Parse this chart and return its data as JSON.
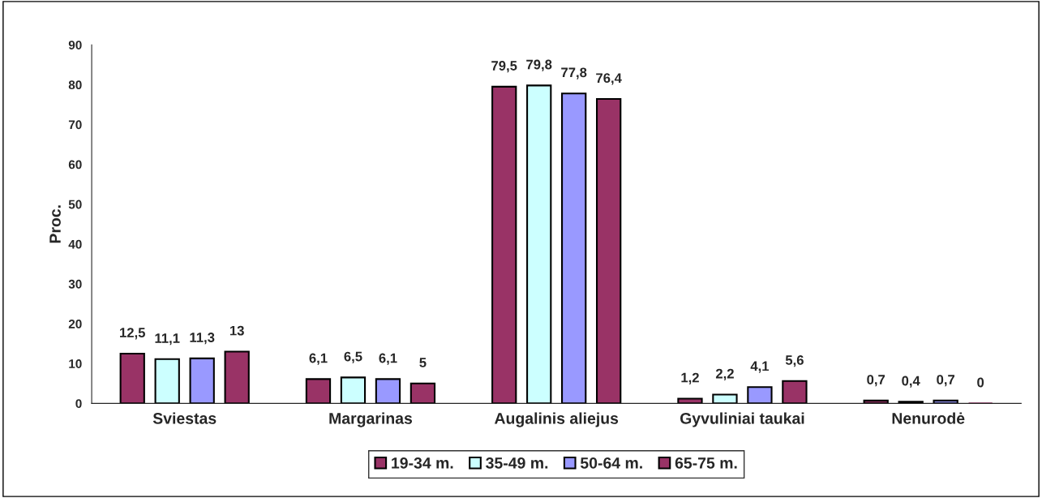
{
  "chart_data": {
    "type": "bar",
    "ylabel": "Proc.",
    "categories": [
      "Sviestas",
      "Margarinas",
      "Augalinis aliejus",
      "Gyvuliniai taukai",
      "Nenurodė"
    ],
    "series": [
      {
        "name": "19-34 m.",
        "color": "#993366",
        "values": [
          12.5,
          6.1,
          79.5,
          1.2,
          0.7
        ],
        "value_labels": [
          "12,5",
          "6,1",
          "79,5",
          "1,2",
          "0,7"
        ]
      },
      {
        "name": "35-49 m.",
        "color": "#ccffff",
        "values": [
          11.1,
          6.5,
          79.8,
          2.2,
          0.4
        ],
        "value_labels": [
          "11,1",
          "6,5",
          "79,8",
          "2,2",
          "0,4"
        ]
      },
      {
        "name": "50-64 m.",
        "color": "#9999ff",
        "values": [
          11.3,
          6.1,
          77.8,
          4.1,
          0.7
        ],
        "value_labels": [
          "11,3",
          "6,1",
          "77,8",
          "4,1",
          "0,7"
        ]
      },
      {
        "name": "65-75 m.",
        "color": "#993366",
        "values": [
          13,
          5,
          76.4,
          5.6,
          0
        ],
        "value_labels": [
          "13",
          "5",
          "76,4",
          "5,6",
          "0"
        ]
      }
    ],
    "ylim": [
      0,
      90
    ],
    "yticks": [
      0,
      10,
      20,
      30,
      40,
      50,
      60,
      70,
      80,
      90
    ],
    "grid": false,
    "legend": "bottom"
  }
}
